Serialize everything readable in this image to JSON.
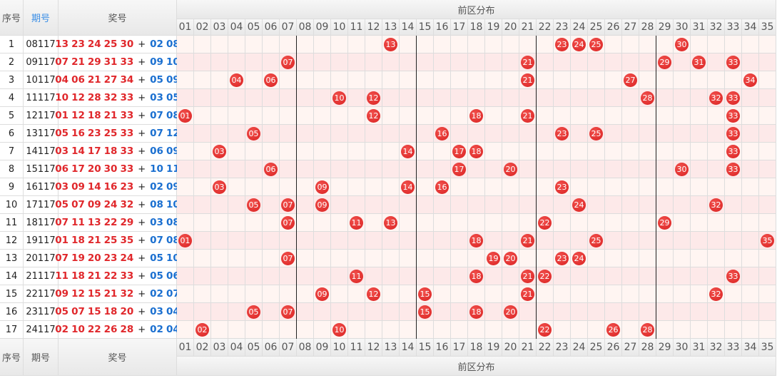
{
  "header": {
    "index": "序号",
    "period": "期号",
    "numbers": "奖号",
    "distribution": "前区分布",
    "columns": [
      "01",
      "02",
      "03",
      "04",
      "05",
      "06",
      "07",
      "08",
      "09",
      "10",
      "11",
      "12",
      "13",
      "14",
      "15",
      "16",
      "17",
      "18",
      "19",
      "20",
      "21",
      "22",
      "23",
      "24",
      "25",
      "26",
      "27",
      "28",
      "29",
      "30",
      "31",
      "32",
      "33",
      "34",
      "35"
    ]
  },
  "separator": "+",
  "rows": [
    {
      "index": 1,
      "period": "08117",
      "front": [
        "13",
        "23",
        "24",
        "25",
        "30"
      ],
      "back": [
        "02",
        "08"
      ]
    },
    {
      "index": 2,
      "period": "09117",
      "front": [
        "07",
        "21",
        "29",
        "31",
        "33"
      ],
      "back": [
        "09",
        "10"
      ]
    },
    {
      "index": 3,
      "period": "10117",
      "front": [
        "04",
        "06",
        "21",
        "27",
        "34"
      ],
      "back": [
        "05",
        "09"
      ]
    },
    {
      "index": 4,
      "period": "11117",
      "front": [
        "10",
        "12",
        "28",
        "32",
        "33"
      ],
      "back": [
        "03",
        "05"
      ]
    },
    {
      "index": 5,
      "period": "12117",
      "front": [
        "01",
        "12",
        "18",
        "21",
        "33"
      ],
      "back": [
        "07",
        "08"
      ]
    },
    {
      "index": 6,
      "period": "13117",
      "front": [
        "05",
        "16",
        "23",
        "25",
        "33"
      ],
      "back": [
        "07",
        "12"
      ]
    },
    {
      "index": 7,
      "period": "14117",
      "front": [
        "03",
        "14",
        "17",
        "18",
        "33"
      ],
      "back": [
        "06",
        "09"
      ]
    },
    {
      "index": 8,
      "period": "15117",
      "front": [
        "06",
        "17",
        "20",
        "30",
        "33"
      ],
      "back": [
        "10",
        "11"
      ]
    },
    {
      "index": 9,
      "period": "16117",
      "front": [
        "03",
        "09",
        "14",
        "16",
        "23"
      ],
      "back": [
        "02",
        "09"
      ]
    },
    {
      "index": 10,
      "period": "17117",
      "front": [
        "05",
        "07",
        "09",
        "24",
        "32"
      ],
      "back": [
        "08",
        "10"
      ]
    },
    {
      "index": 11,
      "period": "18117",
      "front": [
        "07",
        "11",
        "13",
        "22",
        "29"
      ],
      "back": [
        "03",
        "08"
      ]
    },
    {
      "index": 12,
      "period": "19117",
      "front": [
        "01",
        "18",
        "21",
        "25",
        "35"
      ],
      "back": [
        "07",
        "08"
      ]
    },
    {
      "index": 13,
      "period": "20117",
      "front": [
        "07",
        "19",
        "20",
        "23",
        "24"
      ],
      "back": [
        "05",
        "10"
      ]
    },
    {
      "index": 14,
      "period": "21117",
      "front": [
        "11",
        "18",
        "21",
        "22",
        "33"
      ],
      "back": [
        "05",
        "06"
      ]
    },
    {
      "index": 15,
      "period": "22117",
      "front": [
        "09",
        "12",
        "15",
        "21",
        "32"
      ],
      "back": [
        "02",
        "07"
      ]
    },
    {
      "index": 16,
      "period": "23117",
      "front": [
        "05",
        "07",
        "15",
        "18",
        "20"
      ],
      "back": [
        "03",
        "04"
      ]
    },
    {
      "index": 17,
      "period": "24117",
      "front": [
        "02",
        "10",
        "22",
        "26",
        "28"
      ],
      "back": [
        "02",
        "04"
      ]
    }
  ]
}
